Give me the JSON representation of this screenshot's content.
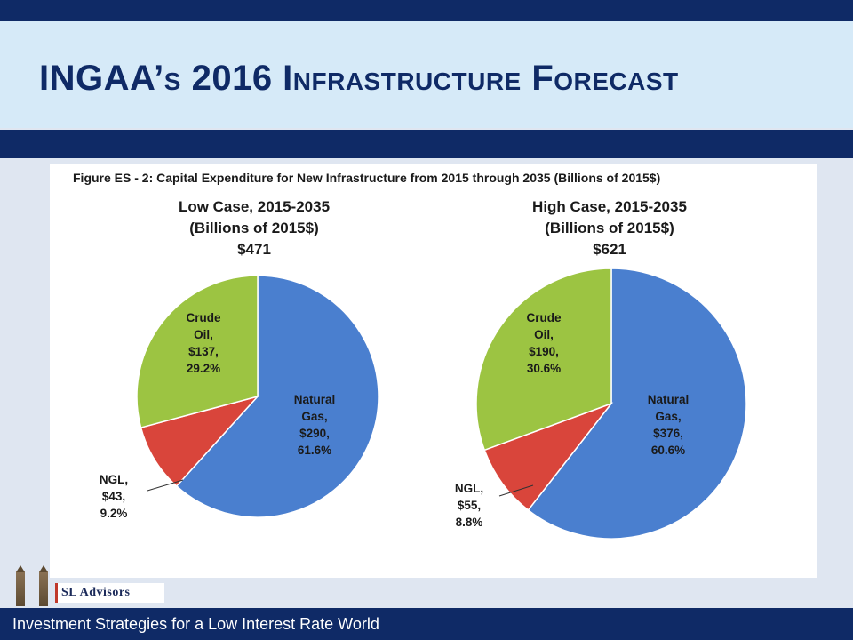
{
  "slide": {
    "title": "INGAA’s 2016 Infrastructure Forecast",
    "footer": "Investment Strategies for a Low Interest Rate World",
    "logo_text": "SL Advisors",
    "colors": {
      "navy": "#0f2a66",
      "title_band": "#d6eaf8",
      "background": "#dfe6f1"
    }
  },
  "figure_title": "Figure ES - 2: Capital Expenditure for New Infrastructure from 2015 through 2035 (Billions of 2015$)",
  "chart_data": [
    {
      "type": "pie",
      "title_lines": [
        "Low Case, 2015-2035",
        "(Billions of 2015$)",
        "$471"
      ],
      "slices": [
        {
          "name": "Natural Gas",
          "value": 290,
          "percent": 61.6,
          "label_lines": [
            "Natural",
            "Gas,",
            "$290,",
            "61.6%"
          ],
          "color": "#4a7fcf"
        },
        {
          "name": "NGL",
          "value": 43,
          "percent": 9.2,
          "label_lines": [
            "NGL,",
            "$43,",
            "9.2%"
          ],
          "color": "#d9453b"
        },
        {
          "name": "Crude Oil",
          "value": 137,
          "percent": 29.2,
          "label_lines": [
            "Crude",
            "Oil,",
            "$137,",
            "29.2%"
          ],
          "color": "#9cc442"
        }
      ]
    },
    {
      "type": "pie",
      "title_lines": [
        "High Case, 2015-2035",
        "(Billions of 2015$)",
        "$621"
      ],
      "slices": [
        {
          "name": "Natural Gas",
          "value": 376,
          "percent": 60.6,
          "label_lines": [
            "Natural",
            "Gas,",
            "$376,",
            "60.6%"
          ],
          "color": "#4a7fcf"
        },
        {
          "name": "NGL",
          "value": 55,
          "percent": 8.8,
          "label_lines": [
            "NGL,",
            "$55,",
            "8.8%"
          ],
          "color": "#d9453b"
        },
        {
          "name": "Crude Oil",
          "value": 190,
          "percent": 30.6,
          "label_lines": [
            "Crude",
            "Oil,",
            "$190,",
            "30.6%"
          ],
          "color": "#9cc442"
        }
      ]
    }
  ]
}
